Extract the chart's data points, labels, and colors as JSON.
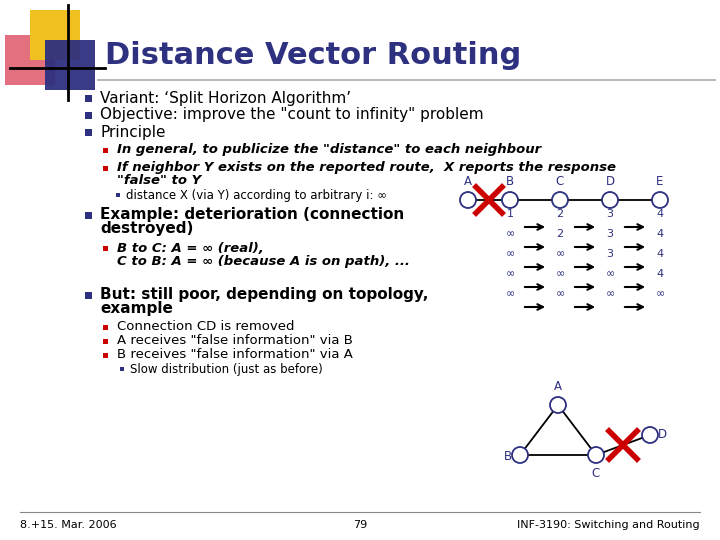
{
  "title": "Distance Vector Routing",
  "title_color": "#2E3080",
  "bg_color": "#ffffff",
  "footer_left": "8.+15. Mar. 2006",
  "footer_center": "79",
  "footer_right": "INF-3190: Switching and Routing",
  "bullet1": "Variant: ‘Split Horizon Algorithm’",
  "bullet2": "Objective: improve the \"count to infinity\" problem",
  "bullet3": "Principle",
  "sub1": "In general, to publicize the \"distance\" to each neighbour",
  "sub2": "If neighbor Y exists on the reported route,  X reports the response",
  "sub2b": "\"false\" to Y",
  "subsub1": "distance X (via Y) according to arbitrary i: ∞",
  "sub3a": "B to C: A = ∞ (real),",
  "sub3b": "C to B: A = ∞ (because A is on path), ...",
  "bullet4a": "Example: deterioration (connection",
  "bullet4b": "destroyed)",
  "bullet5a": "But: still poor, depending on topology,",
  "bullet5b": "example",
  "sub4": "Connection CD is removed",
  "sub5": "A receives \"false information\" via B",
  "sub6": "B receives \"false information\" via A",
  "subsub2": "Slow distribution (just as before)",
  "node_edge": "#2E3080",
  "label_color": "#2E3080",
  "red_x_color": "#cc0000",
  "inf_color": "#2E3080",
  "row_labels": [
    [
      "1",
      "2",
      "3",
      "4"
    ],
    [
      "∞",
      "2",
      "3",
      "4"
    ],
    [
      "∞",
      "∞",
      "3",
      "4"
    ],
    [
      "∞",
      "∞",
      "∞",
      "4"
    ],
    [
      "∞",
      "∞",
      "∞",
      "∞"
    ]
  ]
}
